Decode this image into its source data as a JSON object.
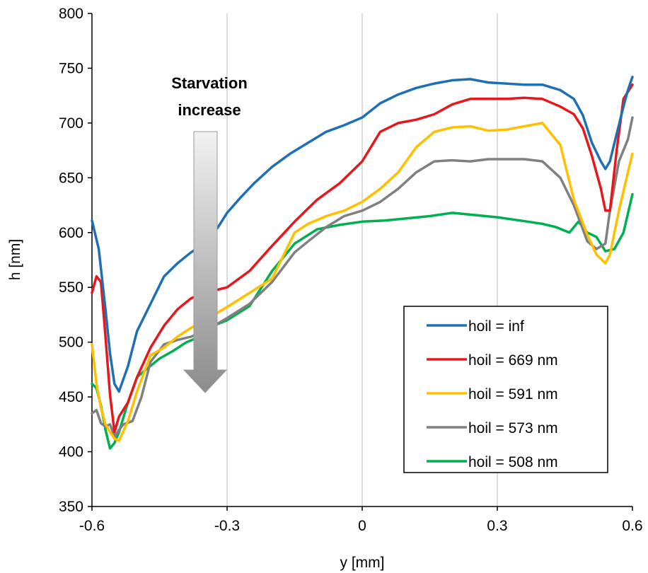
{
  "chart_data": {
    "type": "line",
    "xlabel": "y [mm]",
    "ylabel": "h [nm]",
    "xlim": [
      -0.6,
      0.6
    ],
    "ylim": [
      350,
      800
    ],
    "xticks": [
      -0.6,
      -0.3,
      0,
      0.3,
      0.6
    ],
    "xtick_labels": [
      "-0.6",
      "-0.3",
      "0",
      "0.3",
      "0.6"
    ],
    "yticks": [
      350,
      400,
      450,
      500,
      550,
      600,
      650,
      700,
      750,
      800
    ],
    "ytick_labels": [
      "350",
      "400",
      "450",
      "500",
      "550",
      "600",
      "650",
      "700",
      "750",
      "800"
    ],
    "grid": "vertical",
    "legend_position": "bottom-right",
    "annotation": {
      "lines": [
        "Starvation",
        "increase"
      ],
      "arrow": "downward"
    },
    "series": [
      {
        "name": "hoil = inf",
        "color": "#1f6fb5",
        "x": [
          -0.6,
          -0.585,
          -0.57,
          -0.56,
          -0.55,
          -0.54,
          -0.52,
          -0.5,
          -0.47,
          -0.44,
          -0.41,
          -0.38,
          -0.35,
          -0.32,
          -0.3,
          -0.27,
          -0.24,
          -0.2,
          -0.16,
          -0.12,
          -0.08,
          -0.04,
          0,
          0.04,
          0.08,
          0.12,
          0.16,
          0.2,
          0.24,
          0.28,
          0.32,
          0.36,
          0.4,
          0.44,
          0.47,
          0.49,
          0.51,
          0.53,
          0.54,
          0.55,
          0.565,
          0.58,
          0.59,
          0.6
        ],
        "y": [
          611,
          585,
          530,
          490,
          462,
          455,
          478,
          510,
          535,
          560,
          572,
          582,
          590,
          605,
          618,
          632,
          645,
          660,
          672,
          682,
          692,
          698,
          705,
          718,
          726,
          732,
          736,
          739,
          740,
          737,
          736,
          735,
          735,
          730,
          722,
          707,
          682,
          665,
          658,
          665,
          690,
          715,
          730,
          742
        ]
      },
      {
        "name": "hoil = 669 nm",
        "color": "#e8171b",
        "x": [
          -0.6,
          -0.59,
          -0.58,
          -0.57,
          -0.56,
          -0.55,
          -0.54,
          -0.52,
          -0.5,
          -0.47,
          -0.44,
          -0.41,
          -0.38,
          -0.35,
          -0.3,
          -0.25,
          -0.2,
          -0.15,
          -0.1,
          -0.05,
          0,
          0.04,
          0.08,
          0.12,
          0.16,
          0.2,
          0.24,
          0.28,
          0.32,
          0.36,
          0.4,
          0.44,
          0.47,
          0.49,
          0.51,
          0.53,
          0.54,
          0.55,
          0.565,
          0.58,
          0.6
        ],
        "y": [
          545,
          560,
          555,
          505,
          452,
          418,
          432,
          445,
          468,
          495,
          515,
          530,
          540,
          545,
          550,
          565,
          588,
          610,
          630,
          645,
          665,
          692,
          700,
          703,
          708,
          717,
          722,
          722,
          722,
          723,
          722,
          715,
          708,
          695,
          670,
          640,
          620,
          620,
          675,
          722,
          735
        ]
      },
      {
        "name": "hoil = 591 nm",
        "color": "#ffc000",
        "x": [
          -0.6,
          -0.59,
          -0.58,
          -0.57,
          -0.56,
          -0.55,
          -0.54,
          -0.52,
          -0.5,
          -0.47,
          -0.44,
          -0.41,
          -0.38,
          -0.35,
          -0.3,
          -0.25,
          -0.2,
          -0.15,
          -0.12,
          -0.08,
          -0.04,
          0,
          0.04,
          0.08,
          0.12,
          0.16,
          0.2,
          0.24,
          0.28,
          0.32,
          0.36,
          0.4,
          0.44,
          0.47,
          0.5,
          0.52,
          0.54,
          0.55,
          0.57,
          0.59,
          0.6
        ],
        "y": [
          498,
          462,
          440,
          425,
          418,
          412,
          410,
          428,
          455,
          488,
          495,
          505,
          513,
          520,
          532,
          545,
          558,
          600,
          608,
          615,
          620,
          628,
          640,
          655,
          678,
          692,
          696,
          697,
          693,
          694,
          697,
          700,
          680,
          630,
          598,
          580,
          572,
          580,
          620,
          655,
          672
        ]
      },
      {
        "name": "hoil = 573 nm",
        "color": "#808080",
        "x": [
          -0.6,
          -0.59,
          -0.58,
          -0.57,
          -0.56,
          -0.55,
          -0.54,
          -0.53,
          -0.51,
          -0.49,
          -0.47,
          -0.44,
          -0.41,
          -0.38,
          -0.35,
          -0.3,
          -0.25,
          -0.2,
          -0.15,
          -0.12,
          -0.08,
          -0.04,
          0,
          0.04,
          0.08,
          0.12,
          0.16,
          0.2,
          0.24,
          0.28,
          0.32,
          0.36,
          0.4,
          0.44,
          0.47,
          0.5,
          0.52,
          0.54,
          0.55,
          0.57,
          0.59,
          0.6
        ],
        "y": [
          435,
          438,
          426,
          423,
          425,
          414,
          420,
          425,
          428,
          450,
          482,
          498,
          502,
          505,
          510,
          522,
          535,
          555,
          582,
          592,
          605,
          615,
          620,
          628,
          640,
          655,
          665,
          666,
          665,
          667,
          667,
          667,
          665,
          650,
          625,
          592,
          585,
          590,
          620,
          665,
          685,
          705
        ]
      },
      {
        "name": "hoil = 508 nm",
        "color": "#00b050",
        "x": [
          -0.6,
          -0.59,
          -0.58,
          -0.57,
          -0.56,
          -0.55,
          -0.54,
          -0.52,
          -0.5,
          -0.48,
          -0.45,
          -0.42,
          -0.39,
          -0.36,
          -0.33,
          -0.3,
          -0.25,
          -0.2,
          -0.15,
          -0.1,
          -0.05,
          0,
          0.05,
          0.1,
          0.15,
          0.2,
          0.25,
          0.3,
          0.35,
          0.4,
          0.43,
          0.46,
          0.48,
          0.5,
          0.52,
          0.54,
          0.56,
          0.58,
          0.6
        ],
        "y": [
          462,
          458,
          442,
          420,
          403,
          408,
          418,
          445,
          468,
          475,
          485,
          492,
          500,
          505,
          515,
          520,
          533,
          565,
          590,
          603,
          607,
          610,
          611,
          613,
          615,
          618,
          616,
          614,
          611,
          608,
          605,
          600,
          610,
          600,
          596,
          583,
          585,
          600,
          635
        ]
      }
    ]
  }
}
